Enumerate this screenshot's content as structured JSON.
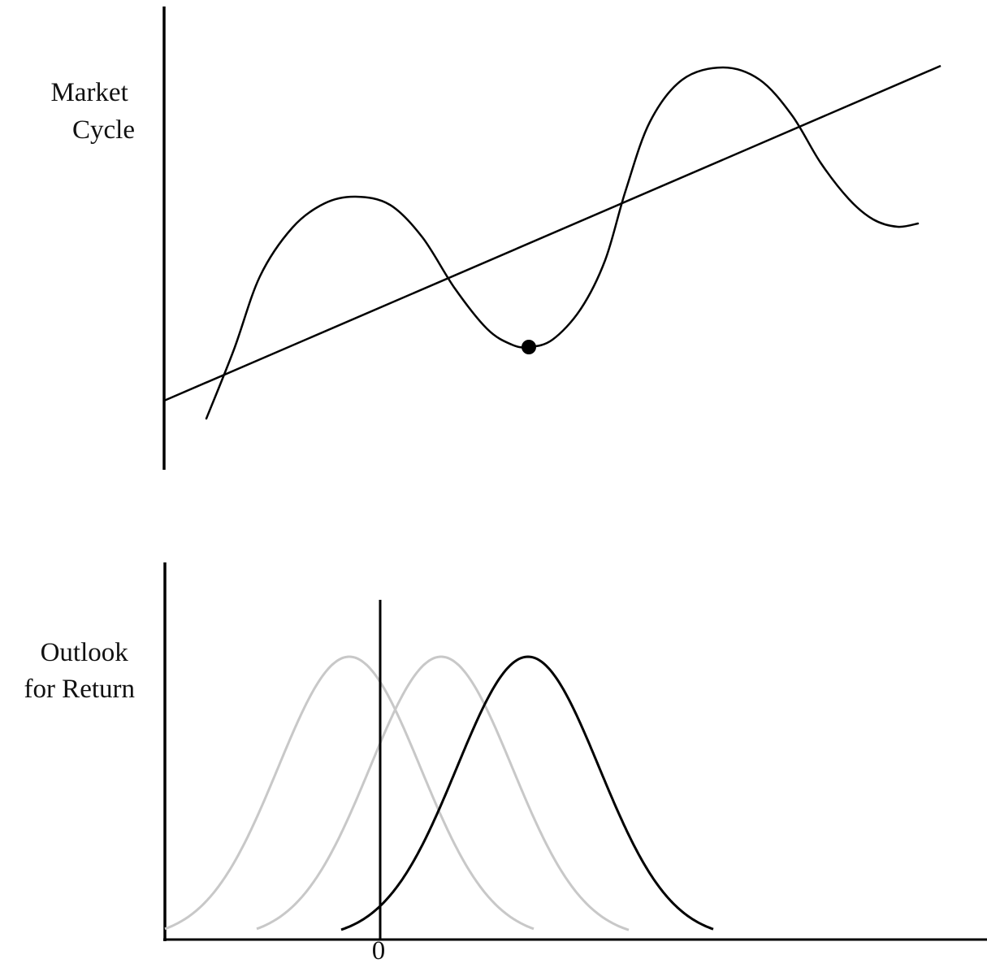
{
  "top_panel": {
    "label_lines": [
      "Market",
      "Cycle"
    ]
  },
  "bottom_panel": {
    "label_lines": [
      "Outlook",
      "for Return"
    ],
    "zero_label": "0"
  },
  "colors": {
    "ink": "#000000",
    "faded_curve": "#c8c8c8"
  }
}
